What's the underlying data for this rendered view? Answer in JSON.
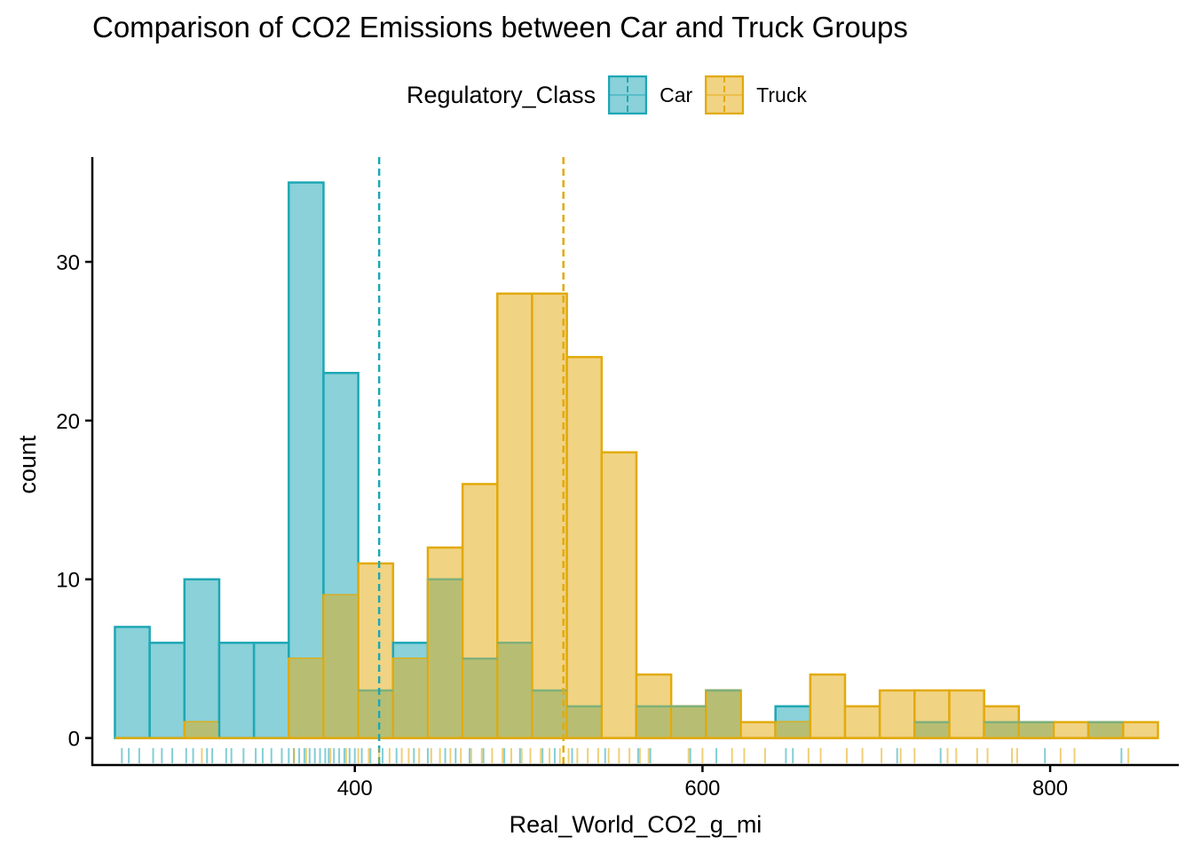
{
  "title": "Comparison of CO2 Emissions between Car and Truck Groups",
  "legend": {
    "title": "Regulatory_Class",
    "items": [
      {
        "label": "Car",
        "fill": "#8ad1d9",
        "stroke": "#1ea7b4"
      },
      {
        "label": "Truck",
        "fill": "#f1d384",
        "stroke": "#e2aa0a"
      }
    ]
  },
  "colors": {
    "car_fill": "#8ad1d9",
    "car_stroke": "#1ea7b4",
    "truck_fill": "#f1d384",
    "truck_stroke": "#e2aa0a",
    "overlap_fill": "#b7be73"
  },
  "chart_data": {
    "type": "histogram",
    "title": "Comparison of CO2 Emissions between Car and Truck Groups",
    "xlabel": "Real_World_CO2_g_mi",
    "ylabel": "count",
    "xlim": [
      249,
      874
    ],
    "ylim": [
      -1.7,
      36.6
    ],
    "x_ticks": [
      400,
      600,
      800
    ],
    "y_ticks": [
      0,
      10,
      20,
      30
    ],
    "bin_width": 20,
    "bin_starts": [
      262,
      282,
      302,
      322,
      342,
      362,
      382,
      402,
      422,
      442,
      462,
      482,
      502,
      522,
      542,
      562,
      582,
      602,
      622,
      642,
      662,
      682,
      702,
      722,
      742,
      762,
      782,
      802,
      822,
      842
    ],
    "series": [
      {
        "name": "Car",
        "values": [
          7,
          6,
          10,
          6,
          6,
          35,
          23,
          3,
          6,
          10,
          5,
          6,
          3,
          2,
          0,
          2,
          2,
          3,
          0,
          2,
          0,
          0,
          0,
          1,
          0,
          1,
          1,
          0,
          1,
          0
        ]
      },
      {
        "name": "Truck",
        "values": [
          0,
          0,
          1,
          0,
          0,
          5,
          9,
          11,
          5,
          12,
          16,
          28,
          28,
          24,
          18,
          4,
          2,
          3,
          1,
          1,
          4,
          2,
          3,
          3,
          3,
          2,
          1,
          1,
          1,
          1
        ]
      }
    ],
    "mean_lines": [
      {
        "series": "Car",
        "x": 414
      },
      {
        "series": "Truck",
        "x": 520
      }
    ],
    "rug": [
      {
        "series": "Car",
        "values": [
          266,
          270,
          276,
          284,
          289,
          295,
          303,
          307,
          315,
          318,
          326,
          329,
          336,
          343,
          347,
          352,
          358,
          362,
          365,
          368,
          371,
          374,
          377,
          380,
          383,
          385,
          388,
          391,
          394,
          397,
          400,
          404,
          409,
          416,
          424,
          434,
          442,
          452,
          458,
          466,
          474,
          486,
          495,
          508,
          515,
          525,
          544,
          563,
          570,
          593,
          608,
          648,
          652,
          712,
          737,
          797,
          841
        ]
      },
      {
        "series": "Truck",
        "values": [
          312,
          365,
          372,
          386,
          395,
          402,
          408,
          414,
          420,
          427,
          431,
          437,
          444,
          449,
          455,
          461,
          467,
          473,
          479,
          485,
          490,
          496,
          501,
          507,
          512,
          518,
          523,
          528,
          534,
          540,
          546,
          552,
          558,
          564,
          569,
          592,
          600,
          617,
          624,
          636,
          661,
          668,
          683,
          692,
          703,
          714,
          722,
          741,
          746,
          758,
          764,
          778,
          781,
          806,
          814,
          845
        ]
      }
    ]
  }
}
